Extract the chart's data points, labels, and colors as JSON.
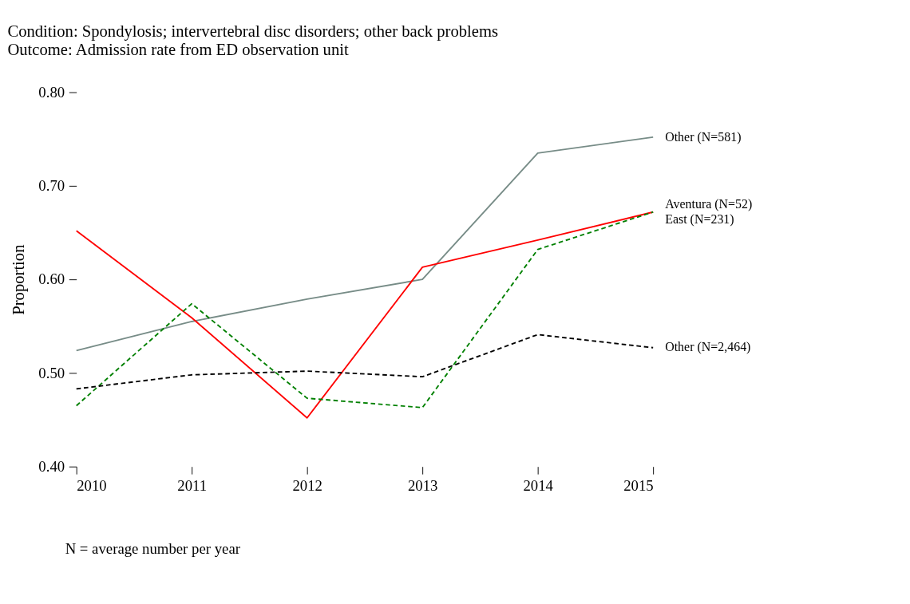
{
  "chart_data": {
    "type": "line",
    "title": "Condition: Spondylosis; intervertebral disc disorders; other back problems",
    "subtitle": "Outcome: Admission rate from ED observation unit",
    "ylabel": "Proportion",
    "annotations": [
      "N = average number per year"
    ],
    "x": [
      2010,
      2011,
      2012,
      2013,
      2014,
      2015
    ],
    "xlim": [
      2010,
      2015
    ],
    "xticks": [
      2010,
      2011,
      2012,
      2013,
      2014,
      2015
    ],
    "ylim": [
      0.4,
      0.8
    ],
    "yticks": [
      {
        "value": 0.4,
        "label": "0.40"
      },
      {
        "value": 0.5,
        "label": "0.50"
      },
      {
        "value": 0.6,
        "label": "0.60"
      },
      {
        "value": 0.7,
        "label": "0.70"
      },
      {
        "value": 0.8,
        "label": "0.80"
      }
    ],
    "grid": false,
    "legend": false,
    "marker": "none",
    "series": [
      {
        "name": "Other (N=581)",
        "color": "#778c87",
        "line_style": "solid",
        "values": [
          0.524,
          0.555,
          0.579,
          0.6,
          0.735,
          0.752
        ]
      },
      {
        "name": "Aventura (N=52)",
        "color": "#ff0000",
        "line_style": "solid",
        "values": [
          0.652,
          0.559,
          0.452,
          0.613,
          0.642,
          0.672
        ]
      },
      {
        "name": "East (N=231)",
        "color": "#008000",
        "line_style": "dashed",
        "values": [
          0.465,
          0.574,
          0.473,
          0.463,
          0.632,
          0.672
        ]
      },
      {
        "name": "Other (N=2,464)",
        "color": "#000000",
        "line_style": "dashed",
        "values": [
          0.483,
          0.498,
          0.502,
          0.496,
          0.541,
          0.527
        ]
      }
    ]
  }
}
